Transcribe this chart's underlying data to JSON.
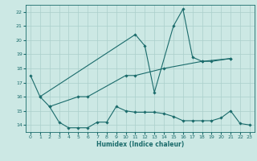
{
  "background_color": "#cce8e4",
  "grid_color": "#aacfcb",
  "line_color": "#1a6b6b",
  "xlim": [
    -0.5,
    23.5
  ],
  "ylim": [
    13.5,
    22.5
  ],
  "yticks": [
    14,
    15,
    16,
    17,
    18,
    19,
    20,
    21,
    22
  ],
  "xticks": [
    0,
    1,
    2,
    3,
    4,
    5,
    6,
    7,
    8,
    9,
    10,
    11,
    12,
    13,
    14,
    15,
    16,
    17,
    18,
    19,
    20,
    21,
    22,
    23
  ],
  "xlabel": "Humidex (Indice chaleur)",
  "line1_x": [
    0,
    1,
    11,
    12,
    13,
    15,
    16,
    17,
    18,
    21
  ],
  "line1_y": [
    17.5,
    16.0,
    20.4,
    19.6,
    16.3,
    21.0,
    22.2,
    18.8,
    18.5,
    18.7
  ],
  "line2_x": [
    1,
    2,
    5,
    6,
    10,
    11,
    14,
    18,
    19,
    21
  ],
  "line2_y": [
    16.0,
    15.3,
    16.0,
    16.0,
    17.5,
    17.5,
    18.0,
    18.5,
    18.5,
    18.7
  ],
  "line3_x": [
    2,
    3,
    4,
    5,
    6,
    7,
    8,
    9,
    10,
    11,
    12,
    13,
    14,
    15,
    16,
    17,
    18,
    19,
    20,
    21,
    22,
    23
  ],
  "line3_y": [
    15.3,
    14.2,
    13.8,
    13.8,
    13.8,
    14.2,
    14.2,
    15.3,
    15.0,
    14.9,
    14.9,
    14.9,
    14.8,
    14.6,
    14.3,
    14.3,
    14.3,
    14.3,
    14.5,
    15.0,
    14.1,
    14.0
  ]
}
